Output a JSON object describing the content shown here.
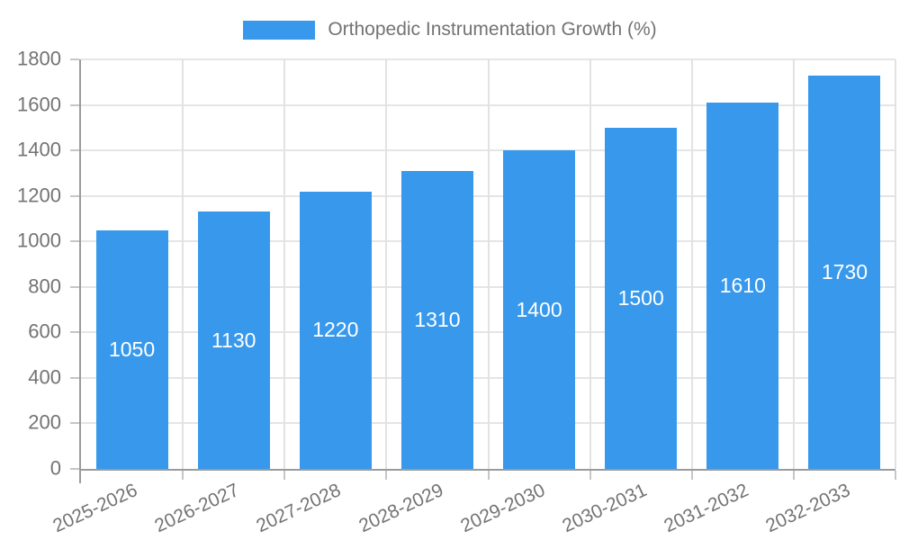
{
  "chart_data": {
    "type": "bar",
    "title": "Orthopedic Instrumentation Growth (%)",
    "categories": [
      "2025-2026",
      "2026-2027",
      "2027-2028",
      "2028-2029",
      "2029-2030",
      "2030-2031",
      "2031-2032",
      "2032-2033"
    ],
    "values": [
      1050,
      1130,
      1220,
      1310,
      1400,
      1500,
      1610,
      1730
    ],
    "xlabel": "",
    "ylabel": "",
    "ylim": [
      0,
      1800
    ],
    "ytick_step": 200,
    "ytick_labels": [
      "0",
      "200",
      "400",
      "600",
      "800",
      "1000",
      "1200",
      "1400",
      "1600",
      "1800"
    ],
    "grid": true,
    "legend_position": "top",
    "bar_color": "#3899ec",
    "value_label_color": "#ffffff",
    "axis_label_color": "#737373",
    "gridline_color": "#e5e5e5",
    "axis_line_color": "#9b9b9b"
  },
  "legend": {
    "label": "Orthopedic Instrumentation Growth (%)",
    "swatch_color": "#3899ec"
  }
}
